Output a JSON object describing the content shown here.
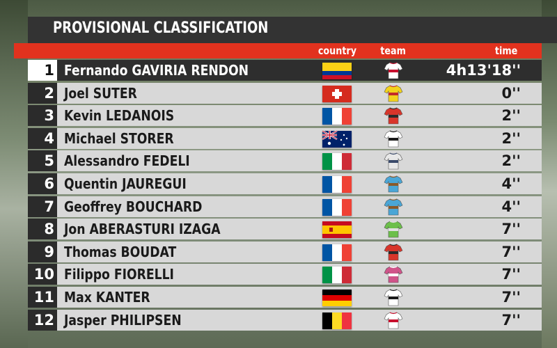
{
  "title": "PROVISIONAL CLASSIFICATION",
  "columns": {
    "country": "country",
    "team": "team",
    "time": "time"
  },
  "riders": [
    {
      "pos": "1",
      "name": "Fernando GAVIRIA RENDON",
      "country_flag": "colombia-flag",
      "team_jersey": "white-red-jersey",
      "jersey_colors": [
        "#ffffff",
        "#c8102e"
      ],
      "time": "4h13'18''"
    },
    {
      "pos": "2",
      "name": "Joel SUTER",
      "country_flag": "switzerland-flag",
      "team_jersey": "yellow-jersey",
      "jersey_colors": [
        "#f2d21c",
        "#c22a2a"
      ],
      "time": "0''"
    },
    {
      "pos": "3",
      "name": "Kevin LEDANOIS",
      "country_flag": "france-flag",
      "team_jersey": "red-jersey",
      "jersey_colors": [
        "#d8352a",
        "#2a2a2a"
      ],
      "time": "2''"
    },
    {
      "pos": "4",
      "name": "Michael STORER",
      "country_flag": "australia-flag",
      "team_jersey": "white-black-jersey",
      "jersey_colors": [
        "#ffffff",
        "#1a1a1a"
      ],
      "time": "2''"
    },
    {
      "pos": "5",
      "name": "Alessandro FEDELI",
      "country_flag": "italy-flag",
      "team_jersey": "white-blue-jersey",
      "jersey_colors": [
        "#e8e8e8",
        "#3a4a6a"
      ],
      "time": "2''"
    },
    {
      "pos": "6",
      "name": "Quentin JAUREGUI",
      "country_flag": "france-flag",
      "team_jersey": "blue-jersey",
      "jersey_colors": [
        "#4aa6d6",
        "#8a5a2a"
      ],
      "time": "4''"
    },
    {
      "pos": "7",
      "name": "Geoffrey BOUCHARD",
      "country_flag": "france-flag",
      "team_jersey": "blue-jersey",
      "jersey_colors": [
        "#4aa6d6",
        "#8a5a2a"
      ],
      "time": "4''"
    },
    {
      "pos": "8",
      "name": "Jon ABERASTURI IZAGA",
      "country_flag": "spain-flag",
      "team_jersey": "green-jersey",
      "jersey_colors": [
        "#6cbf4a",
        "#e0e0e0"
      ],
      "time": "7''"
    },
    {
      "pos": "9",
      "name": "Thomas BOUDAT",
      "country_flag": "france-flag",
      "team_jersey": "red-jersey",
      "jersey_colors": [
        "#d8352a",
        "#2a2a2a"
      ],
      "time": "7''"
    },
    {
      "pos": "10",
      "name": "Filippo FIORELLI",
      "country_flag": "italy-flag",
      "team_jersey": "pink-jersey",
      "jersey_colors": [
        "#d0548a",
        "#ffffff"
      ],
      "time": "7''"
    },
    {
      "pos": "11",
      "name": "Max KANTER",
      "country_flag": "germany-flag",
      "team_jersey": "white-black-jersey",
      "jersey_colors": [
        "#ffffff",
        "#1a1a1a"
      ],
      "time": "7''"
    },
    {
      "pos": "12",
      "name": "Jasper PHILIPSEN",
      "country_flag": "belgium-flag",
      "team_jersey": "white-red-jersey",
      "jersey_colors": [
        "#ffffff",
        "#c8102e"
      ],
      "time": "7''"
    }
  ]
}
